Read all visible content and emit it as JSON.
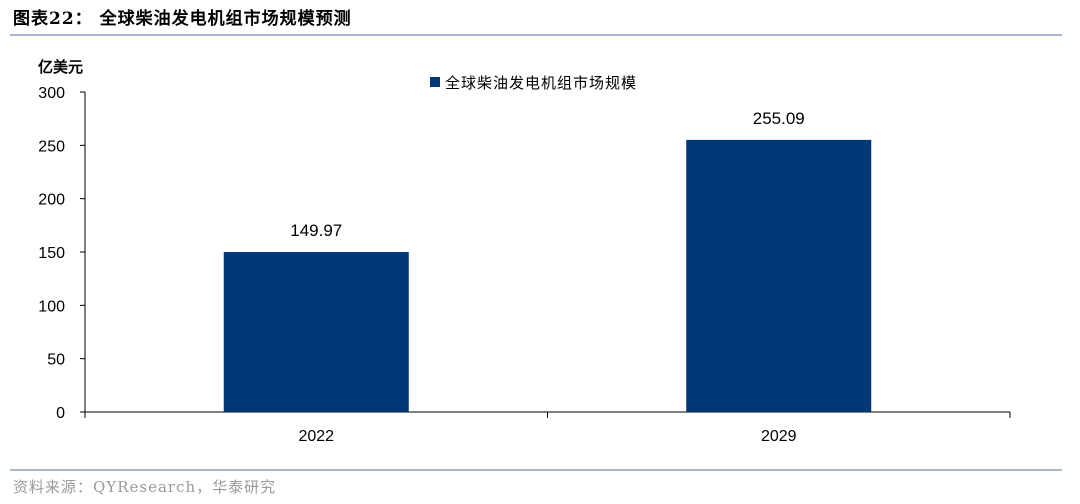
{
  "header": {
    "title": "图表22：  全球柴油发电机组市场规模预测"
  },
  "footer": {
    "source": "资料来源：QYResearch，华泰研究"
  },
  "colors": {
    "bar": "#003775",
    "rule": "#a9b9cc"
  },
  "chart_data": {
    "type": "bar",
    "title": "",
    "ylabel": "亿美元",
    "xlabel": "",
    "categories": [
      "2022",
      "2029"
    ],
    "series": [
      {
        "name": "全球柴油发电机组市场规模",
        "values": [
          149.97,
          255.09
        ]
      }
    ],
    "data_labels": [
      "149.97",
      "255.09"
    ],
    "ylim": [
      0,
      300
    ],
    "yticks": [
      0,
      50,
      100,
      150,
      200,
      250,
      300
    ],
    "ytick_labels": [
      "0",
      "50",
      "100",
      "150",
      "200",
      "250",
      "300"
    ],
    "grid": false,
    "legend": "top"
  }
}
